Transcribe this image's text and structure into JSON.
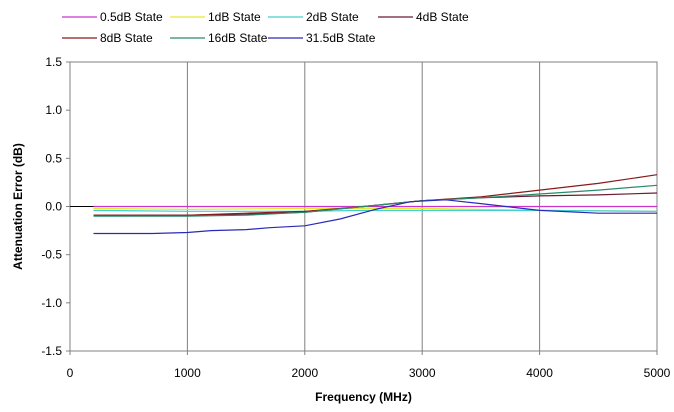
{
  "chart_data": {
    "type": "line",
    "title": "",
    "xlabel": "Frequency (MHz)",
    "ylabel": "Attenuation Error (dB)",
    "xlim": [
      0,
      5000
    ],
    "ylim": [
      -1.5,
      1.5
    ],
    "x_ticks": [
      0,
      1000,
      2000,
      3000,
      4000,
      5000
    ],
    "y_ticks": [
      1.5,
      1.0,
      0.5,
      0.0,
      -0.5,
      -1.0,
      -1.5
    ],
    "x_tick_labels": [
      "0",
      "1000",
      "2000",
      "3000",
      "4000",
      "5000"
    ],
    "y_tick_labels": [
      "1.5",
      "1.0",
      "0.5",
      "0.0",
      "-0.5",
      "-1.0",
      "-1.5"
    ],
    "grid": "vertical",
    "legend_position": "top",
    "series": [
      {
        "name": "0.5dB State",
        "color": "#cc33cc",
        "points": [
          [
            200,
            0.0
          ],
          [
            1000,
            0.0
          ],
          [
            2000,
            0.0
          ],
          [
            3000,
            0.0
          ],
          [
            4000,
            0.0
          ],
          [
            5000,
            0.0
          ]
        ]
      },
      {
        "name": "1dB State",
        "color": "#e6e633",
        "points": [
          [
            200,
            -0.02
          ],
          [
            1000,
            -0.03
          ],
          [
            2000,
            -0.02
          ],
          [
            3000,
            -0.02
          ],
          [
            4000,
            -0.04
          ],
          [
            5000,
            -0.05
          ]
        ]
      },
      {
        "name": "2dB State",
        "color": "#40d0d0",
        "points": [
          [
            200,
            -0.04
          ],
          [
            1000,
            -0.05
          ],
          [
            2000,
            -0.05
          ],
          [
            2500,
            -0.04
          ],
          [
            3000,
            -0.04
          ],
          [
            4000,
            -0.04
          ],
          [
            5000,
            -0.05
          ]
        ]
      },
      {
        "name": "4dB State",
        "color": "#6b1a3a",
        "points": [
          [
            200,
            -0.09
          ],
          [
            1000,
            -0.09
          ],
          [
            1500,
            -0.08
          ],
          [
            2000,
            -0.06
          ],
          [
            2500,
            0.0
          ],
          [
            3000,
            0.06
          ],
          [
            3500,
            0.09
          ],
          [
            4000,
            0.11
          ],
          [
            4500,
            0.12
          ],
          [
            5000,
            0.14
          ]
        ]
      },
      {
        "name": "8dB State",
        "color": "#8b1a1a",
        "points": [
          [
            200,
            -0.09
          ],
          [
            1000,
            -0.09
          ],
          [
            1500,
            -0.07
          ],
          [
            2000,
            -0.05
          ],
          [
            2500,
            0.0
          ],
          [
            3000,
            0.06
          ],
          [
            3500,
            0.1
          ],
          [
            4000,
            0.17
          ],
          [
            4500,
            0.24
          ],
          [
            5000,
            0.33
          ]
        ]
      },
      {
        "name": "16dB State",
        "color": "#2a8a6a",
        "points": [
          [
            200,
            -0.1
          ],
          [
            1000,
            -0.1
          ],
          [
            1500,
            -0.09
          ],
          [
            2000,
            -0.06
          ],
          [
            2500,
            0.0
          ],
          [
            3000,
            0.06
          ],
          [
            3500,
            0.09
          ],
          [
            4000,
            0.13
          ],
          [
            4500,
            0.17
          ],
          [
            5000,
            0.22
          ]
        ]
      },
      {
        "name": "31.5dB State",
        "color": "#2a2ab8",
        "points": [
          [
            200,
            -0.28
          ],
          [
            700,
            -0.28
          ],
          [
            1000,
            -0.27
          ],
          [
            1200,
            -0.25
          ],
          [
            1500,
            -0.24
          ],
          [
            1700,
            -0.22
          ],
          [
            2000,
            -0.2
          ],
          [
            2300,
            -0.13
          ],
          [
            2600,
            -0.03
          ],
          [
            2900,
            0.05
          ],
          [
            3200,
            0.07
          ],
          [
            3500,
            0.03
          ],
          [
            4000,
            -0.04
          ],
          [
            4500,
            -0.07
          ],
          [
            5000,
            -0.07
          ]
        ]
      }
    ]
  }
}
